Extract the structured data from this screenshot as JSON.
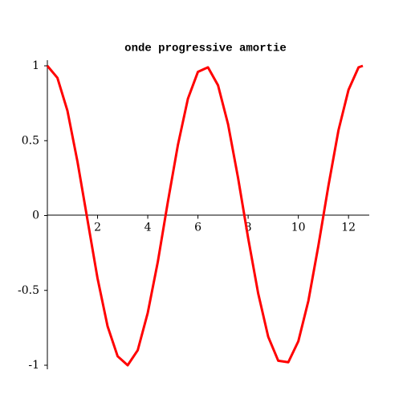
{
  "chart_data": {
    "type": "line",
    "title": "onde progressive amortie",
    "x": [
      0,
      0.4,
      0.8,
      1.2,
      1.6,
      2.0,
      2.4,
      2.8,
      3.2,
      3.6,
      4.0,
      4.4,
      4.8,
      5.2,
      5.6,
      6.0,
      6.4,
      6.8,
      7.2,
      7.6,
      8.0,
      8.4,
      8.8,
      9.2,
      9.6,
      10.0,
      10.4,
      10.8,
      11.2,
      11.6,
      12.0,
      12.4,
      12.57
    ],
    "series": [
      {
        "color": "#ff0000",
        "values": [
          1,
          0.92,
          0.7,
          0.36,
          -0.03,
          -0.42,
          -0.74,
          -0.94,
          -1.0,
          -0.9,
          -0.65,
          -0.31,
          0.09,
          0.47,
          0.78,
          0.96,
          0.99,
          0.87,
          0.61,
          0.25,
          -0.15,
          -0.52,
          -0.81,
          -0.97,
          -0.98,
          -0.84,
          -0.57,
          -0.2,
          0.2,
          0.57,
          0.84,
          0.99,
          1.0
        ]
      }
    ],
    "xlim": [
      0,
      12.57
    ],
    "ylim": [
      -1,
      1
    ],
    "xticks": [
      2,
      4,
      6,
      8,
      10,
      12
    ],
    "yticks": [
      -1,
      -0.5,
      0,
      0.5,
      1
    ]
  }
}
